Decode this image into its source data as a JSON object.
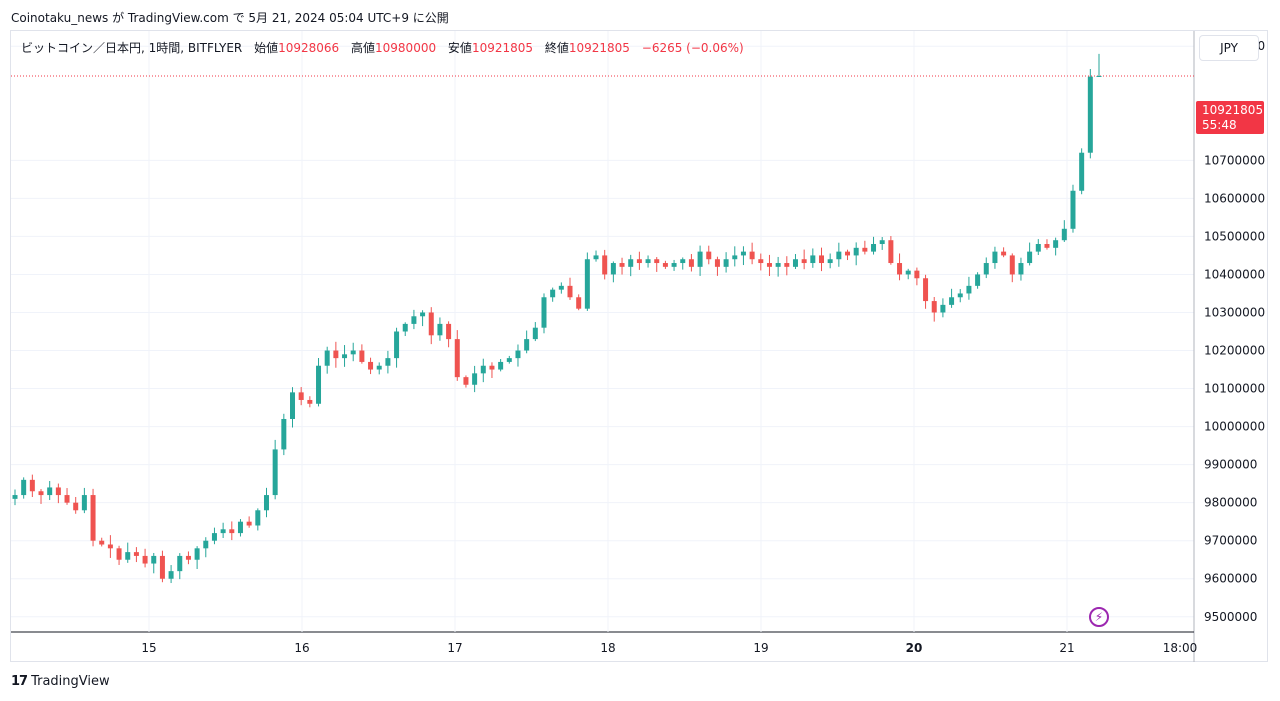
{
  "publisher": "Coinotaku_news が TradingView.com で 5月 21, 2024 05:04 UTC+9 に公開",
  "legend": {
    "symbol": "ビットコイン／日本円, 1時間, BITFLYER",
    "open_label": "始値",
    "open": "10928066",
    "high_label": "高値",
    "high": "10980000",
    "low_label": "安値",
    "low": "10921805",
    "close_label": "終値",
    "close": "10921805",
    "change": "−6265 (−0.06%)"
  },
  "currency_button": "JPY",
  "last_price": {
    "price": "10921805",
    "countdown": "55:48"
  },
  "footer": {
    "logo": "17",
    "brand": "TradingView"
  },
  "colors": {
    "up": "#26a69a",
    "down": "#ef5350",
    "grid": "#f0f3fa",
    "last_line": "#f23645",
    "bolt": "#9c27b0"
  },
  "chart_data": {
    "type": "candlestick",
    "interval": "1h",
    "ylim": [
      9460000,
      11040000
    ],
    "y_ticks": [
      9500000,
      9600000,
      9700000,
      9800000,
      9900000,
      10000000,
      10100000,
      10200000,
      10300000,
      10400000,
      10500000,
      10600000,
      10700000,
      11000000
    ],
    "x_ticks": [
      "15",
      "16",
      "17",
      "18",
      "19",
      "20",
      "21",
      "18:00"
    ],
    "anchors": [
      9820000,
      9860000,
      9830000,
      9820000,
      9840000,
      9820000,
      9800000,
      9780000,
      9820000,
      9700000,
      9690000,
      9680000,
      9650000,
      9670000,
      9660000,
      9640000,
      9660000,
      9600000,
      9620000,
      9660000,
      9650000,
      9680000,
      9700000,
      9720000,
      9730000,
      9720000,
      9750000,
      9740000,
      9780000,
      9820000,
      9940000,
      10020000,
      10090000,
      10070000,
      10060000,
      10160000,
      10200000,
      10180000,
      10190000,
      10200000,
      10170000,
      10150000,
      10160000,
      10180000,
      10250000,
      10270000,
      10290000,
      10300000,
      10240000,
      10270000,
      10230000,
      10130000,
      10110000,
      10140000,
      10160000,
      10150000,
      10170000,
      10180000,
      10200000,
      10230000,
      10260000,
      10340000,
      10360000,
      10370000,
      10340000,
      10310000,
      10440000,
      10450000,
      10400000,
      10430000,
      10420000,
      10440000,
      10430000,
      10440000,
      10430000,
      10420000,
      10430000,
      10440000,
      10420000,
      10460000,
      10440000,
      10420000,
      10440000,
      10450000,
      10460000,
      10440000,
      10430000,
      10420000,
      10430000,
      10420000,
      10440000,
      10430000,
      10450000,
      10430000,
      10440000,
      10460000,
      10450000,
      10470000,
      10460000,
      10480000,
      10490000,
      10430000,
      10400000,
      10410000,
      10390000,
      10330000,
      10300000,
      10320000,
      10340000,
      10350000,
      10370000,
      10400000,
      10430000,
      10460000,
      10450000,
      10400000,
      10430000,
      10460000,
      10480000,
      10470000,
      10490000,
      10520000,
      10620000,
      10720000,
      10920000,
      10921805
    ]
  }
}
